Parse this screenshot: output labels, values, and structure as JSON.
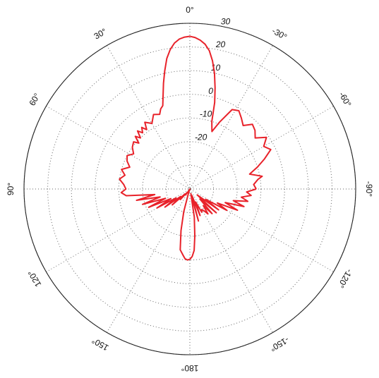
{
  "chart_data": {
    "type": "polar-line",
    "title": "",
    "angular_axis": {
      "unit": "degrees",
      "zero_direction": "top",
      "positive_direction": "counterclockwise",
      "ticks": [
        0,
        30,
        60,
        90,
        120,
        150,
        180,
        -150,
        -120,
        -90,
        -60,
        -30
      ],
      "tick_labels": [
        "0°",
        "30°",
        "60°",
        "90°",
        "120°",
        "150°",
        "180°",
        "-150°",
        "-120°",
        "-90°",
        "-60°",
        "-30°"
      ]
    },
    "radial_axis": {
      "range": [
        -40,
        30
      ],
      "ticks": [
        -20,
        -10,
        0,
        10,
        20,
        30
      ],
      "tick_labels": [
        "-20",
        "-10",
        "0",
        "10",
        "20",
        "30"
      ],
      "grid_values": [
        -30,
        -20,
        -10,
        0,
        10,
        20,
        30
      ],
      "label_angle_deg": -12
    },
    "grid": true,
    "series": [
      {
        "color": "#e8222a",
        "angle_deg": [
          -90,
          -86,
          -82,
          -80,
          -76,
          -72,
          -68,
          -64,
          -60,
          -56,
          -52,
          -48,
          -44,
          -40,
          -36,
          -32,
          -28,
          -24,
          -21,
          -18,
          -16,
          -14,
          -12,
          -10,
          -8,
          -6,
          -4,
          -2,
          0,
          2,
          4,
          6,
          8,
          10,
          12,
          14,
          16,
          18,
          20,
          22,
          26,
          30,
          34,
          36,
          38,
          40,
          42,
          44,
          46,
          48,
          50,
          54,
          58,
          62,
          66,
          70,
          74,
          78,
          82,
          86,
          90,
          93,
          96,
          99,
          102,
          105,
          108,
          111,
          114,
          117,
          120,
          123,
          126,
          129,
          132,
          135,
          138,
          141,
          144,
          147,
          150,
          153,
          156,
          159,
          162,
          165,
          168,
          171,
          174,
          176,
          178,
          180,
          -178,
          -176,
          -174,
          -171,
          -168,
          -165,
          -162,
          -159,
          -156,
          -153,
          -150,
          -147,
          -144,
          -141,
          -138,
          -135,
          -132,
          -129,
          -126,
          -123,
          -120,
          -117,
          -114,
          -111,
          -108,
          -105,
          -102,
          -99,
          -96,
          -93,
          -90
        ],
        "r_db": [
          -12,
          -13,
          -11,
          -9,
          -14,
          -10,
          -6,
          -2,
          -4,
          -1,
          -5,
          -3,
          -2,
          -5,
          -3,
          -1,
          -2,
          -9,
          -14,
          -10,
          -2,
          4,
          10,
          15,
          19,
          21.5,
          23,
          24,
          24.5,
          24.2,
          23.5,
          22,
          19.5,
          16,
          11,
          6,
          1,
          -3,
          -4,
          -6,
          -5,
          -8,
          -6,
          -9,
          -7,
          -9,
          -7,
          -10,
          -8,
          -11,
          -9,
          -10,
          -12,
          -10,
          -11,
          -13,
          -10,
          -12,
          -10,
          -12,
          -13,
          -11,
          -13,
          -25,
          -17,
          -27,
          -19,
          -29,
          -21,
          -31,
          -24,
          -33,
          -27,
          -35,
          -30,
          -37,
          -34,
          -38,
          -37,
          -39,
          -40,
          -39,
          -40,
          -40,
          -38,
          -30,
          -22,
          -14,
          -12,
          -10.5,
          -10,
          -10.3,
          -11.5,
          -14,
          -20,
          -28,
          -38,
          -26,
          -37,
          -28,
          -34,
          -29,
          -30,
          -29,
          -27,
          -31,
          -26,
          -34,
          -25,
          -36,
          -25,
          -32,
          -22,
          -27,
          -18,
          -24,
          -16,
          -21,
          -15,
          -18,
          -14,
          -16,
          -12
        ]
      }
    ]
  }
}
